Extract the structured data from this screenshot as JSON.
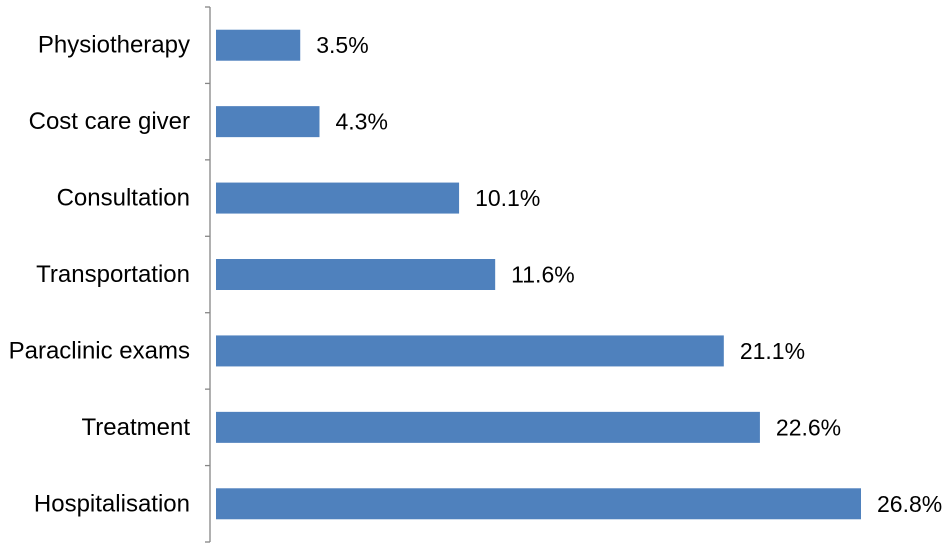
{
  "chart_data": {
    "type": "bar",
    "orientation": "horizontal",
    "categories": [
      "Physiotherapy",
      "Cost care giver",
      "Consultation",
      "Transportation",
      "Paraclinic exams",
      "Treatment",
      "Hospitalisation"
    ],
    "values": [
      3.5,
      4.3,
      10.1,
      11.6,
      21.1,
      22.6,
      26.8
    ],
    "value_labels": [
      "3.5%",
      "4.3%",
      "10.1%",
      "11.6%",
      "21.1%",
      "22.6%",
      "26.8%"
    ],
    "unit": "%",
    "title": "",
    "xlabel": "",
    "ylabel": "",
    "xlim": [
      0,
      26.8
    ],
    "grid": false,
    "legend": "none",
    "bar_color": "#4f81bd",
    "axis_color": "#868686"
  }
}
